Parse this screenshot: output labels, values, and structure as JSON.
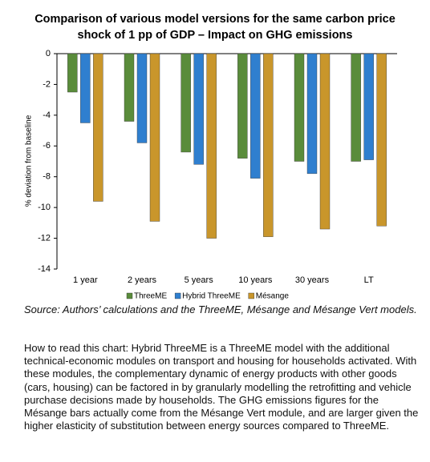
{
  "chart_data": {
    "type": "bar",
    "title": [
      "Comparison of various model versions for the same carbon price",
      "shock of 1 pp of GDP – Impact on GHG emissions"
    ],
    "y_label": "% deviation from baseline",
    "categories": [
      "1 year",
      "2 years",
      "5 years",
      "10 years",
      "30 years",
      "LT"
    ],
    "series": [
      {
        "name": "ThreeME",
        "color": "#5a8c3b",
        "values": [
          -2.5,
          -4.4,
          -6.4,
          -6.8,
          -7.0,
          -7.0
        ]
      },
      {
        "name": "Hybrid ThreeME",
        "color": "#2f7fcf",
        "values": [
          -4.5,
          -5.8,
          -7.2,
          -8.1,
          -7.8,
          -6.9
        ]
      },
      {
        "name": "Mésange",
        "color": "#c9962b",
        "values": [
          -9.6,
          -10.9,
          -12.0,
          -11.9,
          -11.4,
          -11.2
        ]
      }
    ],
    "ylim": [
      -14,
      0
    ],
    "yticks": [
      0,
      -2,
      -4,
      -6,
      -8,
      -10,
      -12,
      -14
    ],
    "grid": false,
    "legend": "bottom"
  },
  "source": "Source: Authors’ calculations and the ThreeME, Mésange and Mésange Vert models.",
  "note": "How to read this chart: Hybrid ThreeME is a ThreeME model with the additional technical-economic modules on transport and housing for households activated. With these modules, the complementary dynamic of energy products with other goods (cars, housing) can be factored in by granularly modelling the retrofitting and vehicle purchase decisions made by households. The GHG emissions figures for the Mésange bars actually come from the Mésange Vert module, and are larger given the higher elasticity of substitution between energy sources compared to ThreeME."
}
